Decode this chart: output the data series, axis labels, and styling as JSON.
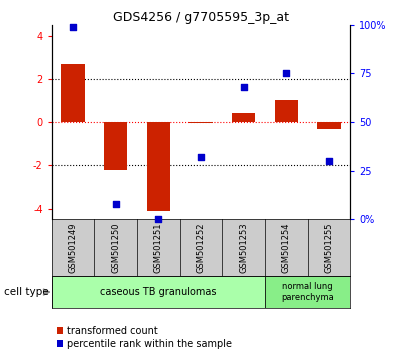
{
  "title": "GDS4256 / g7705595_3p_at",
  "samples": [
    "GSM501249",
    "GSM501250",
    "GSM501251",
    "GSM501252",
    "GSM501253",
    "GSM501254",
    "GSM501255"
  ],
  "transformed_count": [
    2.7,
    -2.2,
    -4.1,
    -0.05,
    0.4,
    1.0,
    -0.3
  ],
  "percentile_rank": [
    99,
    8,
    0,
    32,
    68,
    75,
    30
  ],
  "ylim_left": [
    -4.5,
    4.5
  ],
  "ylim_right": [
    0,
    100
  ],
  "yticks_left": [
    -4,
    -2,
    0,
    2,
    4
  ],
  "yticks_right": [
    0,
    25,
    50,
    75,
    100
  ],
  "yticklabels_right": [
    "0%",
    "25",
    "50",
    "75",
    "100%"
  ],
  "hlines": [
    -2,
    0,
    2
  ],
  "hline_colors": [
    "black",
    "red",
    "black"
  ],
  "hline_styles": [
    "dotted",
    "dotted",
    "dotted"
  ],
  "bar_color": "#cc2200",
  "scatter_color": "#0000cc",
  "group1_label": "caseous TB granulomas",
  "group1_indices": [
    0,
    1,
    2,
    3,
    4
  ],
  "group2_label": "normal lung\nparenchyma",
  "group2_indices": [
    5,
    6
  ],
  "group1_color": "#aaffaa",
  "group2_color": "#88ee88",
  "sample_bg_color": "#cccccc",
  "legend_red_label": "transformed count",
  "legend_blue_label": "percentile rank within the sample",
  "bar_width": 0.55
}
